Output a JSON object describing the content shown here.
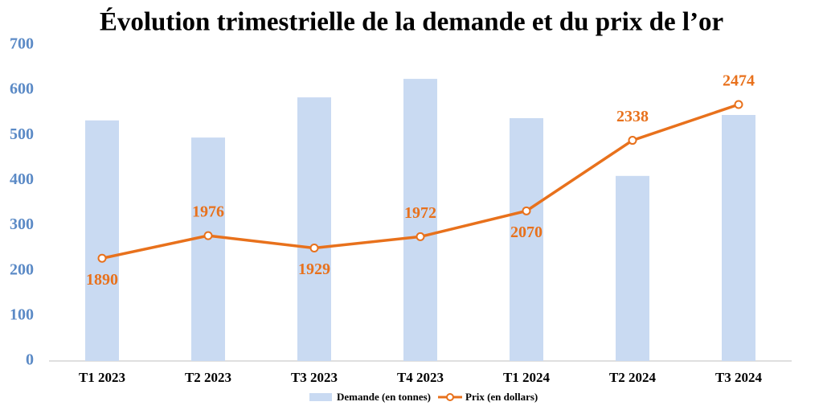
{
  "chart_data": {
    "type": "bar-line",
    "title": "Évolution trimestrielle de la demande et du prix de l’or",
    "categories": [
      "T1 2023",
      "T2 2023",
      "T3 2023",
      "T4 2023",
      "T1 2024",
      "T2 2024",
      "T3 2024"
    ],
    "series": [
      {
        "name": "Demande (en tonnes)",
        "type": "bar",
        "color": "#c9daf2",
        "values": [
          533,
          495,
          584,
          625,
          538,
          410,
          545
        ]
      },
      {
        "name": "Prix (en dollars)",
        "type": "line",
        "axis": "y2",
        "color": "#e8711c",
        "values": [
          1890,
          1976,
          1929,
          1972,
          2070,
          2338,
          2474
        ]
      }
    ],
    "ylim": [
      0,
      700
    ],
    "yticks": [
      0,
      100,
      200,
      300,
      400,
      500,
      600,
      700
    ],
    "y2lim": [
      1500,
      2700
    ],
    "grid": false,
    "legend": "bottom"
  }
}
